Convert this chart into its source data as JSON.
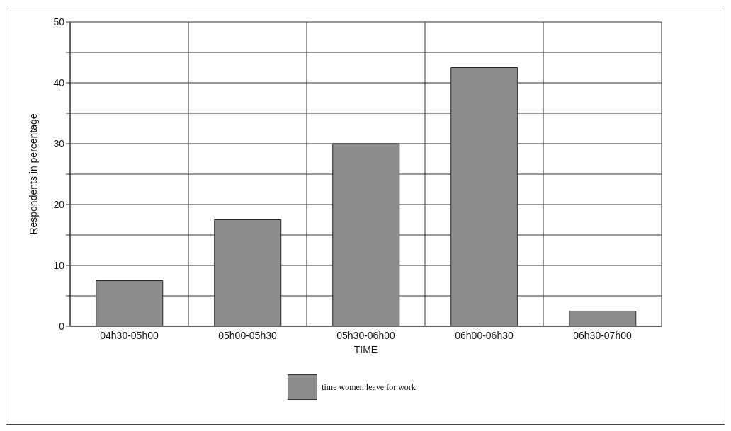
{
  "chart_data": {
    "type": "bar",
    "xlabel": "TIME",
    "ylabel": "Respondents in percentage",
    "categories": [
      "04h30-05h00",
      "05h00-05h30",
      "05h30-06h00",
      "06h00-06h30",
      "06h30-07h00"
    ],
    "series": [
      {
        "name": "time women leave for work",
        "color": "#8c8c8c",
        "values": [
          7.5,
          17.5,
          30,
          42.5,
          2.5
        ]
      }
    ],
    "ylim": [
      0,
      50
    ],
    "yticks": [
      0,
      {
        "value": 5,
        "label": null
      },
      10,
      {
        "value": 15,
        "label": null
      },
      20,
      {
        "value": 25,
        "label": null
      },
      30,
      {
        "value": 35,
        "label": null
      },
      40,
      {
        "value": 45,
        "label": null
      },
      50
    ],
    "grid": true,
    "legend": "bottom"
  }
}
